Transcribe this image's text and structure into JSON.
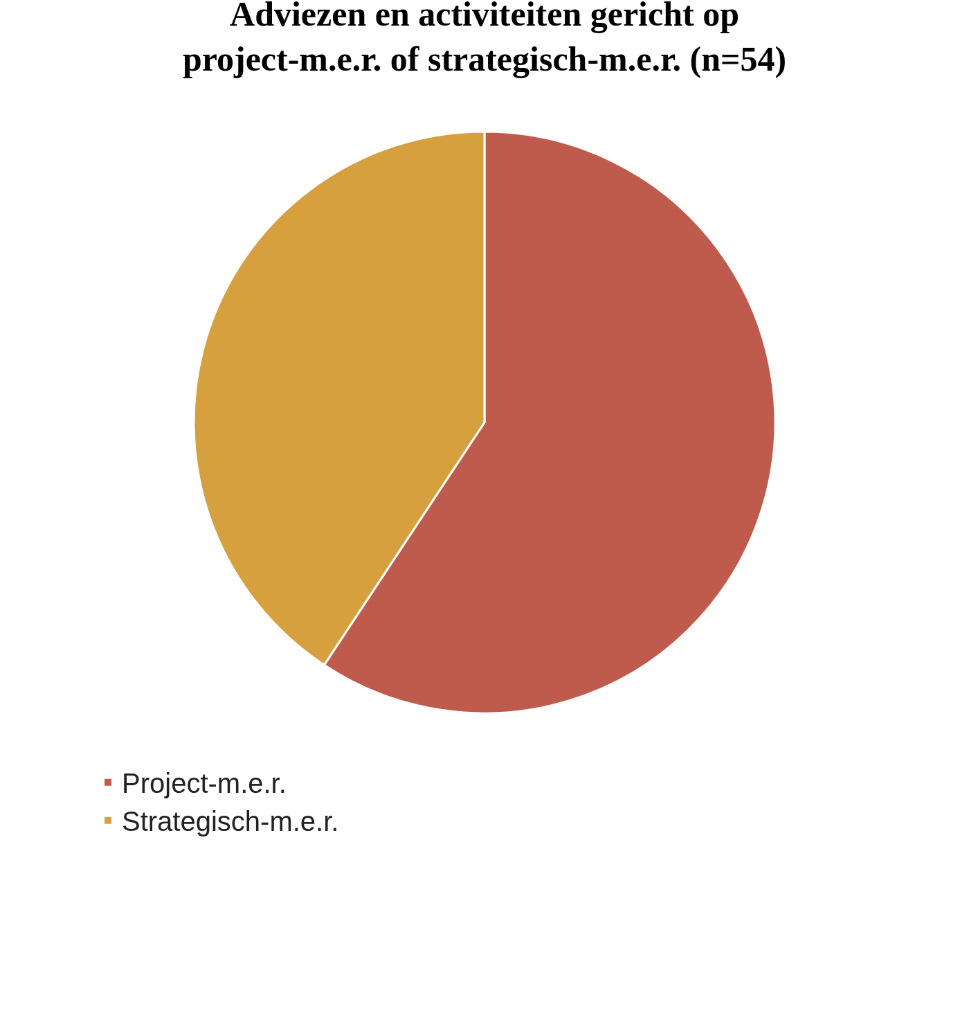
{
  "chart_data": {
    "type": "pie",
    "title": "Adviezen en activiteiten gericht op\nproject-m.e.r. of strategisch-m.e.r. (n=54)",
    "categories": [
      "Project-m.e.r.",
      "Strategisch-m.e.r."
    ],
    "values": [
      59.3,
      40.7
    ],
    "colors": [
      "#be5b4c",
      "#d6a03e"
    ],
    "legend": "bottom left"
  }
}
